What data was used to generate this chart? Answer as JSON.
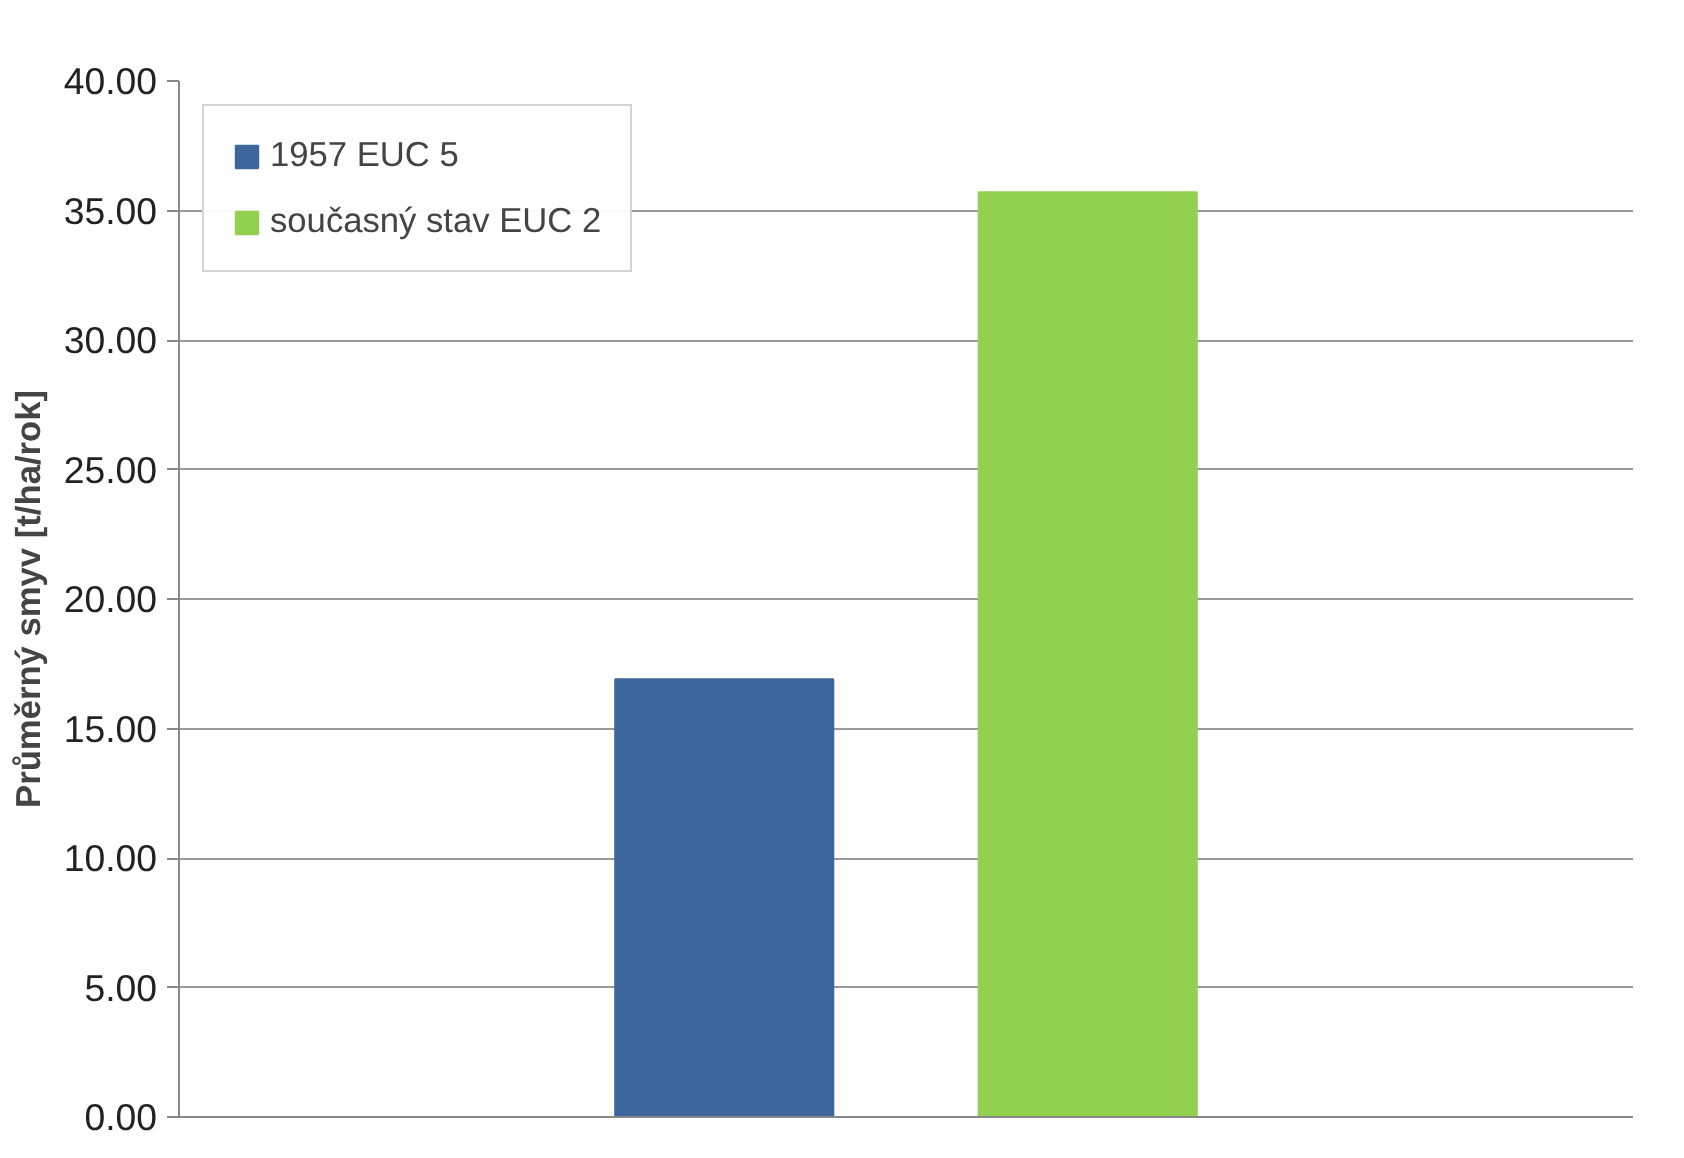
{
  "chart_data": {
    "type": "bar",
    "ylabel": "Průměrný smyv [t/ha/rok]",
    "categories": [
      null
    ],
    "series": [
      {
        "name": "1957 EUC 5",
        "color": "#3d679c",
        "values": [
          16.9
        ]
      },
      {
        "name": "současný stav EUC 2",
        "color": "#92d050",
        "values": [
          35.7
        ]
      }
    ],
    "ylim": [
      0,
      40
    ],
    "yticks": [
      {
        "value": 0,
        "label": "0.00"
      },
      {
        "value": 5,
        "label": "5.00"
      },
      {
        "value": 10,
        "label": "10.00"
      },
      {
        "value": 15,
        "label": "15.00"
      },
      {
        "value": 20,
        "label": "20.00"
      },
      {
        "value": 25,
        "label": "25.00"
      },
      {
        "value": 30,
        "label": "30.00"
      },
      {
        "value": 35,
        "label": "35.00"
      },
      {
        "value": 40,
        "label": "40.00"
      }
    ],
    "grid": "y",
    "legend": "top left"
  }
}
